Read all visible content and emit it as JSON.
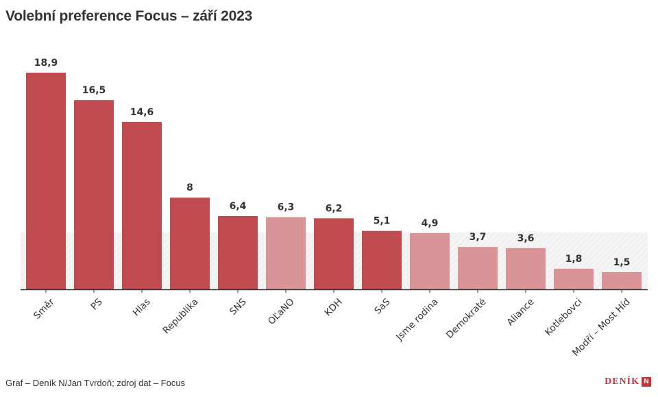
{
  "title": "Volební preference Focus – září 2023",
  "footer": "Graf – Deník N/Jan Tvrdoň; zdroj dat – Focus",
  "logo": {
    "text": "DENÍK",
    "mark": "N"
  },
  "colors": {
    "above_threshold": "#bf4a50",
    "below_threshold": "#d89496",
    "threshold_band": "#f4f4f4",
    "text": "#333333",
    "axis": "#333333",
    "logo": "#c6343b"
  },
  "chart_data": {
    "type": "bar",
    "categories": [
      "Směr",
      "PS",
      "Hlas",
      "Republika",
      "SNS",
      "OĽaNO",
      "KDH",
      "SaS",
      "Jsme rodina",
      "Demokraté",
      "Aliance",
      "Kotlebovci",
      "Modří – Most Híd"
    ],
    "values": [
      18.9,
      16.5,
      14.6,
      8,
      6.4,
      6.3,
      6.2,
      5.1,
      4.9,
      3.7,
      3.6,
      1.8,
      1.5
    ],
    "value_labels": [
      "18,9",
      "16,5",
      "14,6",
      "8",
      "6,4",
      "6,3",
      "6,2",
      "5,1",
      "4,9",
      "3,7",
      "3,6",
      "1,8",
      "1,5"
    ],
    "style": [
      "dark",
      "dark",
      "dark",
      "dark",
      "dark",
      "light",
      "dark",
      "dark",
      "light",
      "light",
      "light",
      "light",
      "light"
    ],
    "threshold_band": [
      0,
      5
    ],
    "ylim": [
      0,
      18.9
    ],
    "grid": false,
    "legend": "none",
    "xlabel": "",
    "ylabel": ""
  }
}
